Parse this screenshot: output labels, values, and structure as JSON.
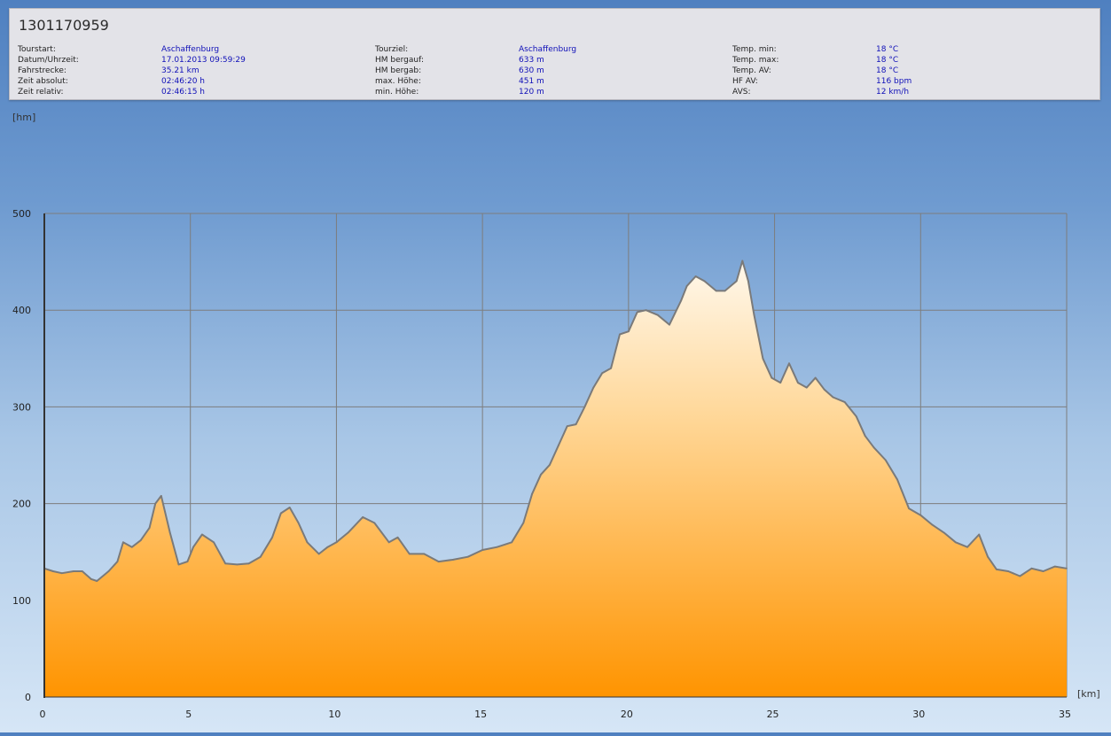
{
  "tour": {
    "title": "1301170959",
    "columns": [
      [
        {
          "label": "Tourstart:",
          "value": "Aschaffenburg"
        },
        {
          "label": "Datum/Uhrzeit:",
          "value": "17.01.2013 09:59:29"
        },
        {
          "label": "Fahrstrecke:",
          "value": "35.21 km"
        },
        {
          "label": "Zeit absolut:",
          "value": "02:46:20 h"
        },
        {
          "label": "Zeit relativ:",
          "value": "02:46:15 h"
        }
      ],
      [
        {
          "label": "Tourziel:",
          "value": "Aschaffenburg"
        },
        {
          "label": "HM bergauf:",
          "value": "633 m"
        },
        {
          "label": "HM bergab:",
          "value": "630 m"
        },
        {
          "label": "max. Höhe:",
          "value": "451 m"
        },
        {
          "label": "min. Höhe:",
          "value": "120 m"
        }
      ],
      [
        {
          "label": "Temp. min:",
          "value": "18 °C"
        },
        {
          "label": "Temp. max:",
          "value": "18 °C"
        },
        {
          "label": "Temp. AV:",
          "value": "18 °C"
        },
        {
          "label": "HF AV:",
          "value": "116 bpm"
        },
        {
          "label": "AVS:",
          "value": "12 km/h"
        }
      ]
    ]
  },
  "chart_data": {
    "type": "area",
    "title": "",
    "xlabel": "[km]",
    "ylabel": "[hm]",
    "xlim": [
      0,
      35
    ],
    "ylim": [
      0,
      500
    ],
    "xticks": [
      "0",
      "5",
      "10",
      "15",
      "20",
      "25",
      "30",
      "35"
    ],
    "yticks": [
      "0",
      "100",
      "200",
      "300",
      "400",
      "500"
    ],
    "grid": true,
    "colors": {
      "fill_top": "#fff8ec",
      "fill_bottom": "#ff9400",
      "line": "#7a7a7a",
      "grid": "#7d7d7d"
    },
    "x": [
      0,
      0.3,
      0.6,
      1.0,
      1.3,
      1.6,
      1.8,
      2.2,
      2.5,
      2.7,
      3.0,
      3.3,
      3.6,
      3.8,
      4.0,
      4.3,
      4.6,
      4.9,
      5.1,
      5.4,
      5.8,
      6.2,
      6.6,
      7.0,
      7.4,
      7.8,
      8.1,
      8.4,
      8.7,
      9.0,
      9.4,
      9.7,
      10.0,
      10.4,
      10.9,
      11.3,
      11.8,
      12.1,
      12.5,
      13.0,
      13.5,
      14.0,
      14.5,
      15.0,
      15.5,
      16.0,
      16.4,
      16.7,
      17.0,
      17.3,
      17.6,
      17.9,
      18.2,
      18.5,
      18.8,
      19.1,
      19.4,
      19.7,
      20.0,
      20.3,
      20.6,
      21.0,
      21.4,
      21.8,
      22.0,
      22.3,
      22.6,
      23.0,
      23.3,
      23.7,
      23.9,
      24.1,
      24.3,
      24.6,
      24.9,
      25.2,
      25.5,
      25.8,
      26.1,
      26.4,
      26.7,
      27.0,
      27.4,
      27.8,
      28.1,
      28.4,
      28.8,
      29.2,
      29.6,
      30.0,
      30.4,
      30.8,
      31.2,
      31.6,
      32.0,
      32.3,
      32.6,
      33.0,
      33.4,
      33.8,
      34.2,
      34.6,
      35.0
    ],
    "values": [
      133,
      130,
      128,
      130,
      130,
      122,
      120,
      130,
      140,
      160,
      155,
      162,
      175,
      200,
      208,
      170,
      137,
      140,
      155,
      168,
      160,
      138,
      137,
      138,
      145,
      165,
      190,
      196,
      180,
      160,
      148,
      155,
      160,
      170,
      186,
      180,
      160,
      165,
      148,
      148,
      140,
      142,
      145,
      152,
      155,
      160,
      180,
      210,
      230,
      240,
      260,
      280,
      282,
      300,
      320,
      335,
      340,
      375,
      378,
      398,
      400,
      395,
      385,
      410,
      425,
      435,
      430,
      420,
      420,
      430,
      451,
      430,
      395,
      350,
      330,
      325,
      345,
      325,
      320,
      330,
      318,
      310,
      305,
      290,
      270,
      258,
      245,
      225,
      195,
      188,
      178,
      170,
      160,
      155,
      168,
      145,
      132,
      130,
      125,
      133,
      130,
      135,
      133
    ]
  }
}
